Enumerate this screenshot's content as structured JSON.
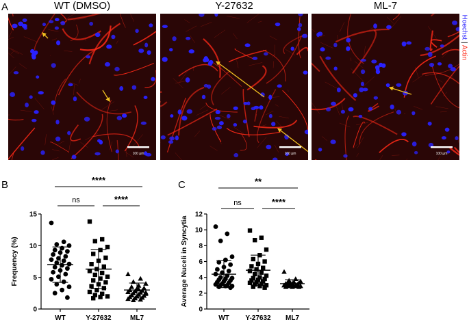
{
  "panel_a": {
    "letter": "A",
    "titles": [
      "WT (DMSO)",
      "Y-27632",
      "ML-7"
    ],
    "scale_bars": [
      "100 µm",
      "100 µm",
      "100 µm"
    ],
    "stain_legend": {
      "hoechst": "Hoechst",
      "sep": "|",
      "actin": "Actin"
    },
    "colors": {
      "nuclei": "#2a22ff",
      "actin": "#ff2a18",
      "background": "#2a0606",
      "arrow": "#f0c020"
    }
  },
  "chart_data": [
    {
      "panel": "B",
      "type": "scatter",
      "ylabel": "Frequency (%)",
      "categories": [
        "WT",
        "Y-27632",
        "ML7"
      ],
      "ylim": [
        0,
        15
      ],
      "yticks": [
        0,
        5,
        10,
        15
      ],
      "series": [
        {
          "marker": "circle",
          "mean": 7.0,
          "sd": 2.8,
          "values": [
            13.6,
            10.6,
            10.2,
            10.0,
            9.6,
            9.3,
            9.1,
            8.9,
            8.6,
            8.3,
            8.0,
            7.8,
            7.6,
            7.3,
            7.1,
            6.9,
            6.6,
            6.4,
            6.1,
            5.8,
            5.5,
            5.1,
            4.7,
            4.3,
            3.9,
            3.5,
            3.0,
            2.5,
            1.8
          ]
        },
        {
          "marker": "square",
          "mean": 6.3,
          "sd": 3.1,
          "values": [
            13.8,
            11.0,
            10.7,
            9.8,
            9.3,
            8.7,
            8.1,
            7.6,
            7.1,
            6.7,
            6.3,
            6.0,
            5.7,
            5.4,
            5.1,
            4.8,
            4.5,
            4.2,
            3.9,
            3.6,
            3.3,
            3.0,
            2.7,
            2.4,
            2.2,
            2.0,
            1.9,
            1.7
          ]
        },
        {
          "marker": "triangle",
          "mean": 3.0,
          "sd": 1.1,
          "values": [
            5.5,
            4.8,
            4.3,
            4.0,
            3.7,
            3.5,
            3.3,
            3.2,
            3.0,
            2.9,
            2.8,
            2.7,
            2.6,
            2.5,
            2.4,
            2.3,
            2.2,
            2.1,
            2.0,
            1.9,
            1.8,
            1.7,
            1.6,
            1.5,
            1.4,
            2.6,
            3.1,
            2.2
          ]
        }
      ],
      "comparisons": [
        {
          "from": 0,
          "to": 2,
          "label": "****",
          "level": 2
        },
        {
          "from": 0,
          "to": 1,
          "label": "ns",
          "level": 1
        },
        {
          "from": 1,
          "to": 2,
          "label": "****",
          "level": 1
        }
      ]
    },
    {
      "panel": "C",
      "type": "scatter",
      "ylabel": "Average Nuceli in Syncytia",
      "categories": [
        "WT",
        "Y-27632",
        "ML7"
      ],
      "ylim": [
        0,
        12
      ],
      "yticks": [
        0,
        2,
        4,
        6,
        8,
        10,
        12
      ],
      "series": [
        {
          "marker": "circle",
          "mean": 4.4,
          "sd": 1.7,
          "values": [
            10.4,
            9.5,
            8.6,
            6.6,
            6.2,
            5.9,
            5.6,
            5.3,
            5.0,
            4.8,
            4.6,
            4.4,
            4.2,
            4.0,
            3.9,
            3.8,
            3.7,
            3.6,
            3.5,
            3.4,
            3.3,
            3.2,
            3.1,
            3.0,
            3.0,
            2.9,
            2.9,
            2.8,
            2.7
          ]
        },
        {
          "marker": "square",
          "mean": 4.9,
          "sd": 1.9,
          "values": [
            9.9,
            9.0,
            8.7,
            7.5,
            6.8,
            6.3,
            6.0,
            5.7,
            5.4,
            5.2,
            5.0,
            4.8,
            4.6,
            4.4,
            4.2,
            4.0,
            3.9,
            3.8,
            3.7,
            3.6,
            3.5,
            3.4,
            3.3,
            3.2,
            3.1,
            3.0,
            2.9,
            2.8,
            2.7
          ]
        },
        {
          "marker": "triangle",
          "mean": 3.2,
          "sd": 0.5,
          "values": [
            4.7,
            3.8,
            3.6,
            3.5,
            3.4,
            3.3,
            3.3,
            3.2,
            3.2,
            3.1,
            3.1,
            3.0,
            3.0,
            3.0,
            2.9,
            2.9,
            2.9,
            2.8,
            2.8,
            2.8,
            3.1,
            3.2,
            3.0,
            2.9,
            3.3
          ]
        }
      ],
      "comparisons": [
        {
          "from": 0,
          "to": 2,
          "label": "**",
          "level": 2
        },
        {
          "from": 0,
          "to": 1,
          "label": "ns",
          "level": 1
        },
        {
          "from": 1,
          "to": 2,
          "label": "****",
          "level": 1
        }
      ]
    }
  ]
}
